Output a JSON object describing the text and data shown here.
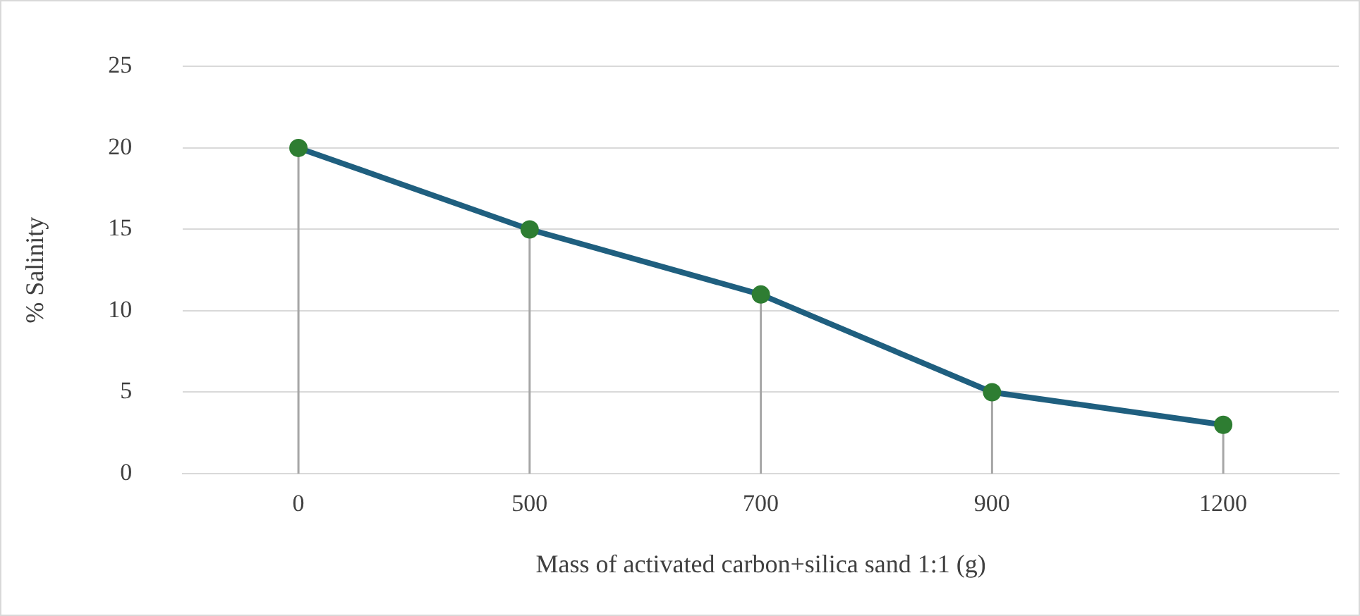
{
  "chart_data": {
    "type": "line",
    "xlabel": "Mass of activated carbon+silica sand 1:1 (g)",
    "ylabel": "% Salinity",
    "categories": [
      "0",
      "500",
      "700",
      "900",
      "1200"
    ],
    "series": [
      {
        "color": "#1f5f7f",
        "colors": [
          "#2e7d32",
          "#2e7d32",
          "#2e7d32",
          "#2e7d32",
          "#2e7d32"
        ],
        "values": [
          20,
          15,
          11,
          5,
          3
        ],
        "errors": [
          [
            20,
            0
          ],
          [
            15,
            0
          ],
          [
            11,
            0
          ],
          [
            5,
            0
          ],
          [
            3,
            0
          ]
        ]
      }
    ],
    "ylim": [
      0,
      25
    ],
    "yticks": [
      0,
      5,
      10,
      15,
      20,
      25
    ],
    "grid": "y",
    "legend": false,
    "marker": "circle",
    "line_style": "solid"
  }
}
